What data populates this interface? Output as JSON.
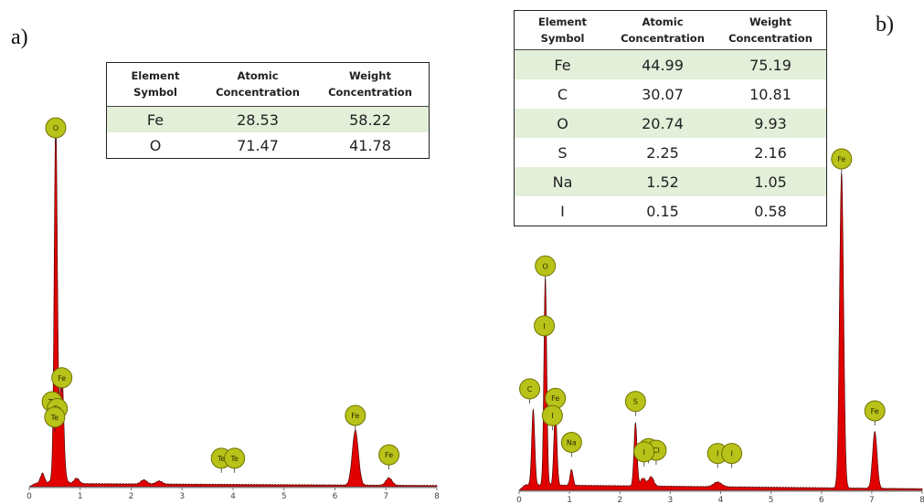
{
  "panels": {
    "a": {
      "label": "a)",
      "table": {
        "headers": [
          "Element\nSymbol",
          "Atomic\nConcentration",
          "Weight\nConcentration"
        ],
        "rows": [
          [
            "Fe",
            "28.53",
            "58.22"
          ],
          [
            "O",
            "71.47",
            "41.78"
          ]
        ]
      }
    },
    "b": {
      "label": "b)",
      "table": {
        "headers": [
          "Element\nSymbol",
          "Atomic\nConcentration",
          "Weight\nConcentration"
        ],
        "rows": [
          [
            "Fe",
            "44.99",
            "75.19"
          ],
          [
            "C",
            "30.07",
            "10.81"
          ],
          [
            "O",
            "20.74",
            "9.93"
          ],
          [
            "S",
            "2.25",
            "2.16"
          ],
          [
            "Na",
            "1.52",
            "1.05"
          ],
          [
            "I",
            "0.15",
            "0.58"
          ]
        ]
      }
    }
  },
  "colors": {
    "spectrum_fill": "#e00000",
    "spectrum_line": "#3a0000",
    "marker_fill": "#b8c219",
    "marker_stroke": "#6f7400",
    "table_shade": "#e3efd9"
  },
  "chart_data": [
    {
      "type": "area",
      "panel": "a",
      "xlim": [
        0,
        8
      ],
      "ylim": [
        0,
        100
      ],
      "xticks": [
        "0",
        "1",
        "2",
        "3",
        "4",
        "5",
        "6",
        "7",
        "8"
      ],
      "grid": false,
      "peaks": [
        {
          "x": 0.52,
          "height": 100,
          "width": 0.03
        },
        {
          "x": 0.64,
          "height": 27,
          "width": 0.035
        },
        {
          "x": 0.58,
          "height": 9,
          "width": 0.08
        },
        {
          "x": 0.26,
          "height": 3,
          "width": 0.04
        },
        {
          "x": 0.93,
          "height": 1.6,
          "width": 0.05
        },
        {
          "x": 2.25,
          "height": 1.2,
          "width": 0.06
        },
        {
          "x": 2.55,
          "height": 0.9,
          "width": 0.06
        },
        {
          "x": 6.4,
          "height": 16,
          "width": 0.06
        },
        {
          "x": 7.06,
          "height": 2.2,
          "width": 0.06
        }
      ],
      "baseline": 0.8,
      "markers": [
        {
          "label": "O",
          "x": 0.52,
          "y": 100
        },
        {
          "label": "Fe",
          "x": 0.64,
          "y": 27
        },
        {
          "label": "Te",
          "x": 0.45,
          "y": 20
        },
        {
          "label": "Te",
          "x": 0.55,
          "y": 18
        },
        {
          "label": "Te",
          "x": 0.5,
          "y": 15.5
        },
        {
          "label": "Te",
          "x": 3.77,
          "y": 3.5
        },
        {
          "label": "Te",
          "x": 4.03,
          "y": 3.5
        },
        {
          "label": "Fe",
          "x": 6.4,
          "y": 16
        },
        {
          "label": "Fe",
          "x": 7.06,
          "y": 4.5
        }
      ]
    },
    {
      "type": "area",
      "panel": "b",
      "xlim": [
        0,
        8
      ],
      "ylim": [
        0,
        100
      ],
      "xticks": [
        "0",
        "1",
        "2",
        "3",
        "4",
        "5",
        "6",
        "7",
        "8"
      ],
      "grid": false,
      "peaks": [
        {
          "x": 0.28,
          "height": 24,
          "width": 0.03
        },
        {
          "x": 0.52,
          "height": 66,
          "width": 0.028
        },
        {
          "x": 0.72,
          "height": 24,
          "width": 0.03
        },
        {
          "x": 1.04,
          "height": 5,
          "width": 0.03
        },
        {
          "x": 2.31,
          "height": 20,
          "width": 0.03
        },
        {
          "x": 2.46,
          "height": 2.5,
          "width": 0.05
        },
        {
          "x": 2.62,
          "height": 3,
          "width": 0.05
        },
        {
          "x": 3.94,
          "height": 1.5,
          "width": 0.08
        },
        {
          "x": 6.4,
          "height": 100,
          "width": 0.04
        },
        {
          "x": 7.06,
          "height": 18,
          "width": 0.045
        }
      ],
      "baseline": 1.6,
      "markers": [
        {
          "label": "O",
          "x": 0.52,
          "y": 66
        },
        {
          "label": "I",
          "x": 0.5,
          "y": 47
        },
        {
          "label": "C",
          "x": 0.21,
          "y": 27
        },
        {
          "label": "Fe",
          "x": 0.72,
          "y": 24
        },
        {
          "label": "I",
          "x": 0.66,
          "y": 18.5
        },
        {
          "label": "Na",
          "x": 1.04,
          "y": 10
        },
        {
          "label": "S",
          "x": 2.31,
          "y": 23
        },
        {
          "label": "Cl",
          "x": 2.57,
          "y": 8
        },
        {
          "label": "Cl",
          "x": 2.72,
          "y": 7.5
        },
        {
          "label": "I",
          "x": 2.48,
          "y": 7
        },
        {
          "label": "I",
          "x": 3.94,
          "y": 6.5
        },
        {
          "label": "I",
          "x": 4.22,
          "y": 6.5
        },
        {
          "label": "Fe",
          "x": 6.4,
          "y": 100
        },
        {
          "label": "Fe",
          "x": 7.06,
          "y": 20
        }
      ]
    }
  ]
}
